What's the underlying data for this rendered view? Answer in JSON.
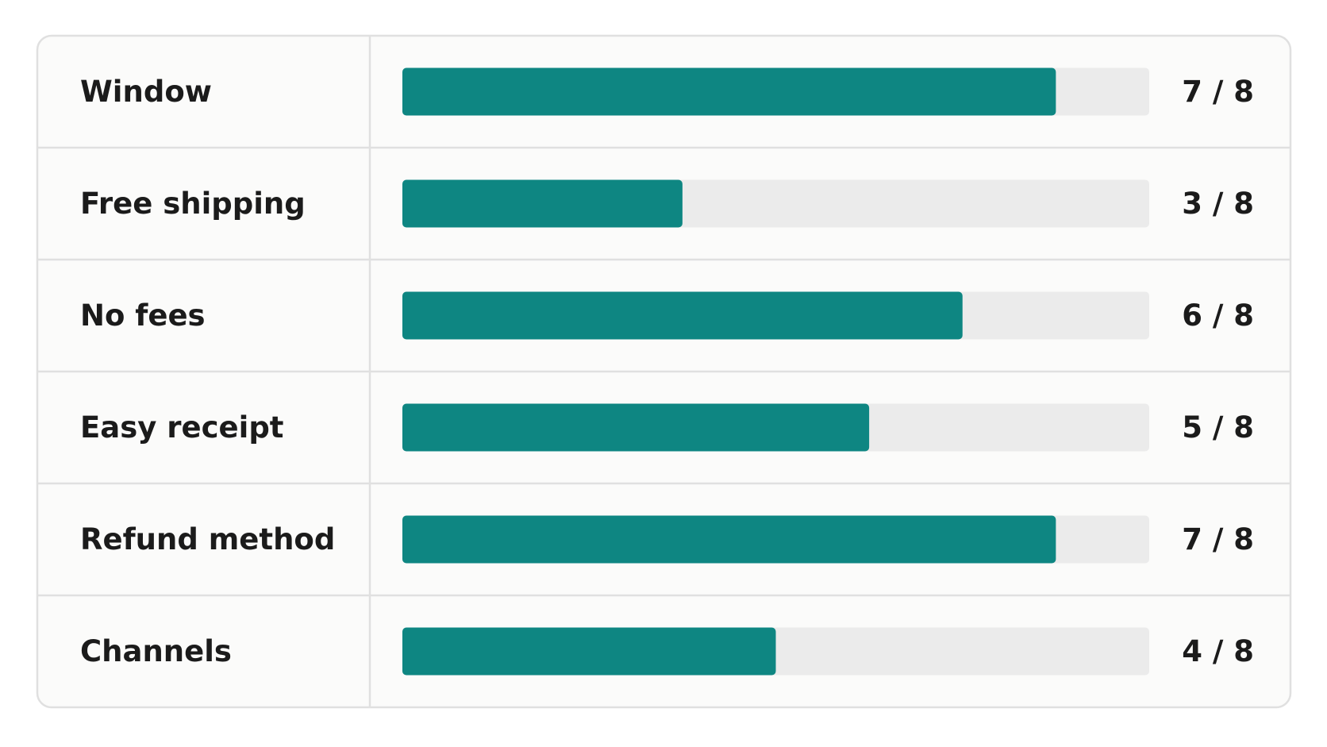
{
  "chart_data": {
    "type": "bar",
    "orientation": "horizontal",
    "categories": [
      "Window",
      "Free shipping",
      "No fees",
      "Easy receipt",
      "Refund method",
      "Channels"
    ],
    "values": [
      7,
      3,
      6,
      5,
      7,
      4
    ],
    "value_labels": [
      "7 / 8",
      "3 / 8",
      "6 / 8",
      "5 / 8",
      "7 / 8",
      "4 / 8"
    ],
    "xlim": [
      0,
      8
    ],
    "color": "#0e8682",
    "track_color": "#ebebeb"
  }
}
